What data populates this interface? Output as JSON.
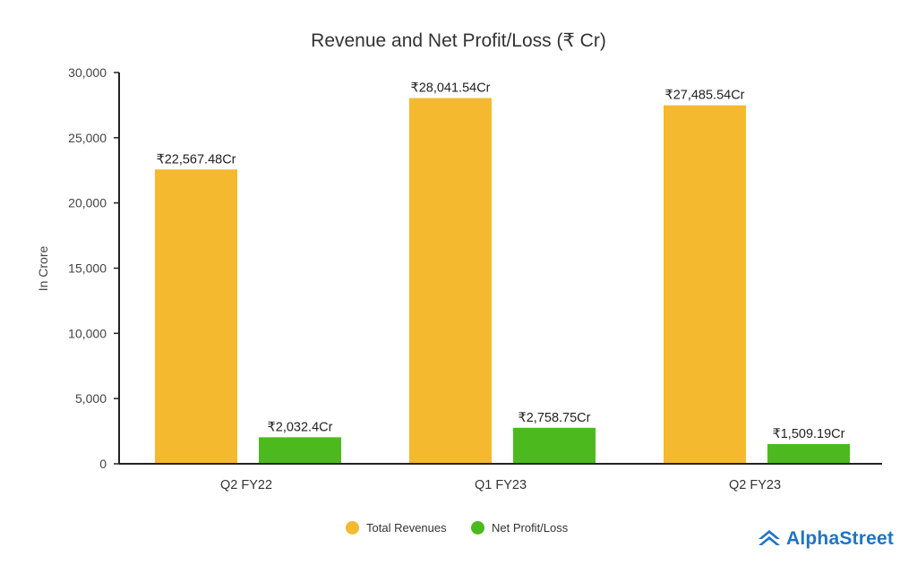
{
  "chart_data": {
    "type": "bar",
    "title": "Revenue and Net Profit/Loss (₹ Cr)",
    "xlabel": "",
    "ylabel": "In Crore",
    "ylim": [
      0,
      30000
    ],
    "yticks": [
      0,
      5000,
      10000,
      15000,
      20000,
      25000,
      30000
    ],
    "ytick_labels": [
      "0",
      "5,000",
      "10,000",
      "15,000",
      "20,000",
      "25,000",
      "30,000"
    ],
    "categories": [
      "Q2 FY22",
      "Q1 FY23",
      "Q2 FY23"
    ],
    "series": [
      {
        "name": "Total Revenues",
        "color": "#f4b92e",
        "values": [
          22567.48,
          28041.54,
          27485.54
        ],
        "labels": [
          "₹22,567.48Cr",
          "₹28,041.54Cr",
          "₹27,485.54Cr"
        ]
      },
      {
        "name": "Net Profit/Loss",
        "color": "#4cba1e",
        "values": [
          2032.4,
          2758.75,
          1509.19
        ],
        "labels": [
          "₹2,032.4Cr",
          "₹2,758.75Cr",
          "₹1,509.19Cr"
        ]
      }
    ],
    "legend_position": "bottom-center",
    "grid": false
  },
  "branding": {
    "logo_text": "AlphaStreet",
    "logo_color": "#1e74c8"
  }
}
